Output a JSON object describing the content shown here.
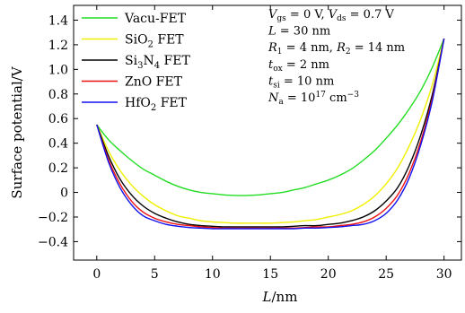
{
  "chart_data": {
    "type": "line",
    "xlabel": "L/nm",
    "ylabel": "Surface potential/V",
    "xlim": [
      -2,
      31.5
    ],
    "ylim": [
      -0.55,
      1.52
    ],
    "x_ticks": [
      "0",
      "5",
      "10",
      "15",
      "20",
      "25",
      "30"
    ],
    "y_ticks": [
      "−0.4",
      "−0.2",
      "0",
      "0.2",
      "0.4",
      "0.6",
      "0.8",
      "1.0",
      "1.2",
      "1.4"
    ],
    "grid": false,
    "legend_position": "top-left",
    "x": [
      0,
      1,
      2,
      3,
      4,
      5,
      6,
      7,
      8,
      9,
      10,
      11,
      12,
      13,
      14,
      15,
      16,
      17,
      18,
      19,
      20,
      21,
      22,
      23,
      24,
      25,
      26,
      27,
      28,
      29,
      30
    ],
    "series": [
      {
        "name": "Vacu-FET",
        "color": "#22dd22",
        "values": [
          0.55,
          0.43,
          0.34,
          0.26,
          0.19,
          0.14,
          0.09,
          0.05,
          0.02,
          0.0,
          -0.01,
          -0.02,
          -0.025,
          -0.025,
          -0.02,
          -0.01,
          0.0,
          0.02,
          0.04,
          0.07,
          0.1,
          0.14,
          0.19,
          0.26,
          0.34,
          0.44,
          0.55,
          0.68,
          0.83,
          1.02,
          1.25
        ]
      },
      {
        "name": "SiO2 FET",
        "color": "#f0f000",
        "values": [
          0.55,
          0.34,
          0.18,
          0.06,
          -0.03,
          -0.1,
          -0.15,
          -0.19,
          -0.21,
          -0.23,
          -0.24,
          -0.245,
          -0.25,
          -0.25,
          -0.25,
          -0.25,
          -0.245,
          -0.24,
          -0.23,
          -0.22,
          -0.2,
          -0.18,
          -0.15,
          -0.1,
          -0.03,
          0.07,
          0.2,
          0.38,
          0.6,
          0.88,
          1.25
        ]
      },
      {
        "name": "Si3N4 FET",
        "color": "#000000",
        "values": [
          0.55,
          0.3,
          0.11,
          -0.02,
          -0.11,
          -0.17,
          -0.21,
          -0.24,
          -0.26,
          -0.27,
          -0.275,
          -0.28,
          -0.28,
          -0.28,
          -0.28,
          -0.28,
          -0.28,
          -0.275,
          -0.27,
          -0.27,
          -0.26,
          -0.25,
          -0.23,
          -0.2,
          -0.15,
          -0.07,
          0.04,
          0.22,
          0.47,
          0.8,
          1.25
        ]
      },
      {
        "name": "ZnO FET",
        "color": "#ee1111",
        "values": [
          0.55,
          0.27,
          0.07,
          -0.07,
          -0.16,
          -0.21,
          -0.24,
          -0.26,
          -0.27,
          -0.28,
          -0.285,
          -0.29,
          -0.29,
          -0.29,
          -0.29,
          -0.29,
          -0.29,
          -0.29,
          -0.285,
          -0.28,
          -0.28,
          -0.27,
          -0.26,
          -0.24,
          -0.2,
          -0.13,
          -0.02,
          0.16,
          0.42,
          0.77,
          1.25
        ]
      },
      {
        "name": "HfO2 FET",
        "color": "#1111ee",
        "values": [
          0.55,
          0.25,
          0.04,
          -0.1,
          -0.19,
          -0.23,
          -0.26,
          -0.275,
          -0.285,
          -0.29,
          -0.295,
          -0.295,
          -0.295,
          -0.295,
          -0.295,
          -0.295,
          -0.295,
          -0.295,
          -0.29,
          -0.29,
          -0.285,
          -0.28,
          -0.27,
          -0.26,
          -0.23,
          -0.17,
          -0.06,
          0.12,
          0.39,
          0.75,
          1.25
        ]
      }
    ],
    "legend": [
      {
        "base": "Vacu-FET",
        "sub": "",
        "tail": ""
      },
      {
        "base": "SiO",
        "sub": "2",
        "tail": " FET"
      },
      {
        "base": "Si",
        "sub": "3",
        "tail": "N",
        "sub2": "4",
        "tail2": " FET"
      },
      {
        "base": "ZnO FET",
        "sub": "",
        "tail": ""
      },
      {
        "base": "HfO",
        "sub": "2",
        "tail": " FET"
      }
    ],
    "annotations": [
      {
        "V": "V",
        "gs": "gs",
        "eq1": " = 0 V, ",
        "V2": "V",
        "ds": "ds",
        "eq2": " = 0.7 V"
      },
      {
        "L": "L",
        "eq": " = 30 nm"
      },
      {
        "R1": "R",
        "s1": "1",
        "eq1": " = 4 nm, ",
        "R2": "R",
        "s2": "2",
        "eq2": " = 14 nm"
      },
      {
        "t": "t",
        "s": "ox",
        "eq": " = 2 nm"
      },
      {
        "t": "t",
        "s": "si",
        "eq": " = 10 nm"
      },
      {
        "N": "N",
        "s": "a",
        "eq": " = 10",
        "sup": "17",
        "unit": " cm",
        "sup2": "−3"
      }
    ]
  }
}
